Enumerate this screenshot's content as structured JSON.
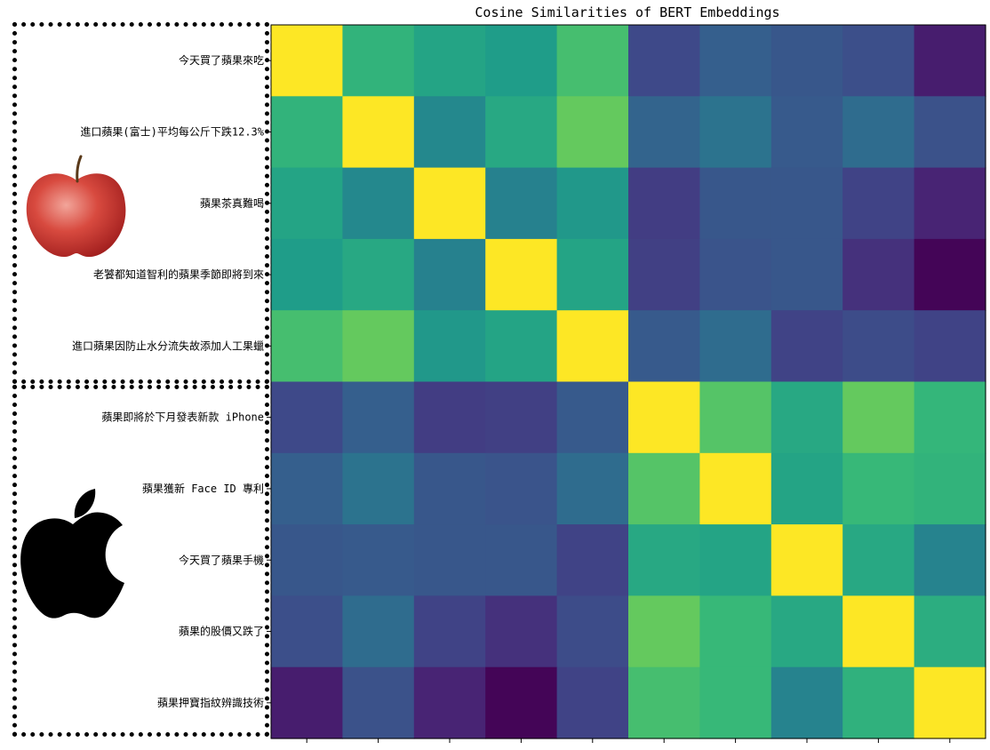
{
  "chart_data": {
    "type": "heatmap",
    "title": "Cosine Similarities of BERT Embeddings",
    "xlabel": "",
    "ylabel": "",
    "row_labels": [
      "今天買了蘋果來吃",
      "進口蘋果(富士)平均每公斤下跌12.3%",
      "蘋果茶真難喝",
      "老饕都知道智利的蘋果季節即將到來",
      "進口蘋果因防止水分流失故添加人工果蠟",
      "蘋果即將於下月發表新款 iPhone",
      "蘋果獲新 Face ID 專利",
      "今天買了蘋果手機",
      "蘋果的股價又跌了",
      "蘋果押寶指紋辨識技術"
    ],
    "colormap": "viridis",
    "value_range": [
      0,
      1
    ],
    "matrix": [
      [
        1.0,
        0.65,
        0.58,
        0.55,
        0.7,
        0.22,
        0.3,
        0.27,
        0.24,
        0.08
      ],
      [
        0.65,
        1.0,
        0.47,
        0.6,
        0.76,
        0.32,
        0.38,
        0.28,
        0.35,
        0.25
      ],
      [
        0.58,
        0.47,
        1.0,
        0.44,
        0.53,
        0.18,
        0.27,
        0.27,
        0.2,
        0.1
      ],
      [
        0.55,
        0.6,
        0.44,
        1.0,
        0.58,
        0.19,
        0.26,
        0.27,
        0.14,
        0.01
      ],
      [
        0.7,
        0.76,
        0.53,
        0.58,
        1.0,
        0.28,
        0.35,
        0.2,
        0.23,
        0.2
      ],
      [
        0.22,
        0.3,
        0.18,
        0.19,
        0.28,
        1.0,
        0.73,
        0.6,
        0.76,
        0.66
      ],
      [
        0.3,
        0.38,
        0.27,
        0.26,
        0.35,
        0.73,
        1.0,
        0.58,
        0.67,
        0.65
      ],
      [
        0.27,
        0.28,
        0.27,
        0.27,
        0.2,
        0.6,
        0.58,
        1.0,
        0.6,
        0.45
      ],
      [
        0.24,
        0.35,
        0.2,
        0.14,
        0.23,
        0.76,
        0.67,
        0.6,
        1.0,
        0.62
      ],
      [
        0.08,
        0.25,
        0.1,
        0.01,
        0.2,
        0.7,
        0.67,
        0.45,
        0.64,
        1.0
      ]
    ]
  },
  "annotations": {
    "group_fruit_icon": "apple-fruit-icon",
    "group_company_icon": "apple-logo-icon"
  }
}
